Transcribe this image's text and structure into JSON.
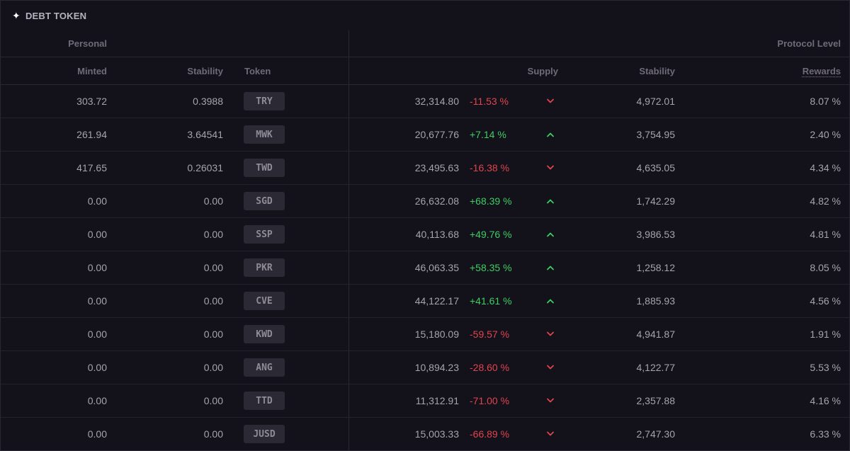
{
  "title": "DEBT TOKEN",
  "groups": {
    "personal": "Personal",
    "protocol": "Protocol Level"
  },
  "columns": {
    "minted": "Minted",
    "stability": "Stability",
    "token": "Token",
    "supply": "Supply",
    "protocol_stability": "Stability",
    "rewards": "Rewards"
  },
  "colors": {
    "up": "#3ccf63",
    "down": "#e0454e"
  },
  "rows": [
    {
      "minted": "303.72",
      "stability": "0.3988",
      "token": "TRY",
      "supply": "32,314.80",
      "change": "-11.53 %",
      "direction": "down",
      "protocol_stability": "4,972.01",
      "rewards": "8.07 %"
    },
    {
      "minted": "261.94",
      "stability": "3.64541",
      "token": "MWK",
      "supply": "20,677.76",
      "change": "+7.14 %",
      "direction": "up",
      "protocol_stability": "3,754.95",
      "rewards": "2.40 %"
    },
    {
      "minted": "417.65",
      "stability": "0.26031",
      "token": "TWD",
      "supply": "23,495.63",
      "change": "-16.38 %",
      "direction": "down",
      "protocol_stability": "4,635.05",
      "rewards": "4.34 %"
    },
    {
      "minted": "0.00",
      "stability": "0.00",
      "token": "SGD",
      "supply": "26,632.08",
      "change": "+68.39 %",
      "direction": "up",
      "protocol_stability": "1,742.29",
      "rewards": "4.82 %"
    },
    {
      "minted": "0.00",
      "stability": "0.00",
      "token": "SSP",
      "supply": "40,113.68",
      "change": "+49.76 %",
      "direction": "up",
      "protocol_stability": "3,986.53",
      "rewards": "4.81 %"
    },
    {
      "minted": "0.00",
      "stability": "0.00",
      "token": "PKR",
      "supply": "46,063.35",
      "change": "+58.35 %",
      "direction": "up",
      "protocol_stability": "1,258.12",
      "rewards": "8.05 %"
    },
    {
      "minted": "0.00",
      "stability": "0.00",
      "token": "CVE",
      "supply": "44,122.17",
      "change": "+41.61 %",
      "direction": "up",
      "protocol_stability": "1,885.93",
      "rewards": "4.56 %"
    },
    {
      "minted": "0.00",
      "stability": "0.00",
      "token": "KWD",
      "supply": "15,180.09",
      "change": "-59.57 %",
      "direction": "down",
      "protocol_stability": "4,941.87",
      "rewards": "1.91 %"
    },
    {
      "minted": "0.00",
      "stability": "0.00",
      "token": "ANG",
      "supply": "10,894.23",
      "change": "-28.60 %",
      "direction": "down",
      "protocol_stability": "4,122.77",
      "rewards": "5.53 %"
    },
    {
      "minted": "0.00",
      "stability": "0.00",
      "token": "TTD",
      "supply": "11,312.91",
      "change": "-71.00 %",
      "direction": "down",
      "protocol_stability": "2,357.88",
      "rewards": "4.16 %"
    },
    {
      "minted": "0.00",
      "stability": "0.00",
      "token": "JUSD",
      "supply": "15,003.33",
      "change": "-66.89 %",
      "direction": "down",
      "protocol_stability": "2,747.30",
      "rewards": "6.33 %"
    }
  ]
}
